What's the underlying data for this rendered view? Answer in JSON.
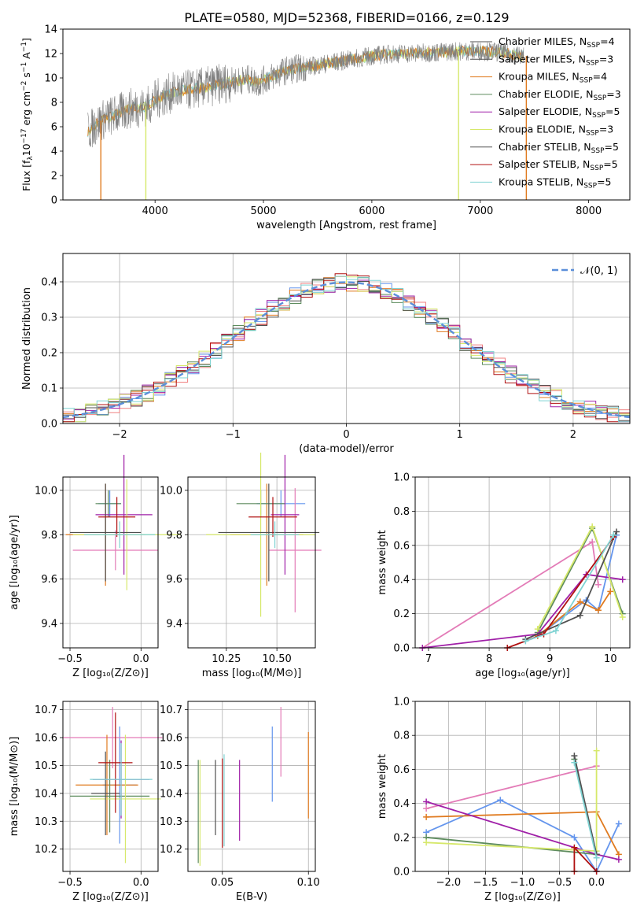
{
  "title": "PLATE=0580, MJD=52368, FIBERID=0166, z=0.129",
  "colors": {
    "Chabrier MILES": "#6495ED",
    "Salpeter MILES": "#F08080",
    "Kroupa MILES": "#E07B20",
    "Chabrier ELODIE": "#5E8C5E",
    "Salpeter ELODIE": "#A020A8",
    "Kroupa ELODIE": "#D6E86A",
    "Chabrier STELIB": "#505050",
    "Salpeter STELIB": "#B01010",
    "Kroupa STELIB": "#7FD3D3",
    "data": "#808080",
    "normal": "#5B8FD9",
    "pink": "#E37BB7",
    "lime": "#B5E655"
  },
  "chart_data": [
    {
      "type": "line",
      "id": "spectrum",
      "title": "PLATE=0580, MJD=52368, FIBERID=0166, z=0.129",
      "xlabel": "wavelength [Angstrom, rest frame]",
      "ylabel_main": "Flux [f",
      "ylabel_sub": "λ",
      "ylabel_rest": "10",
      "ylabel_sup1": "−17",
      "ylabel_mid": " erg cm",
      "ylabel_sup2": "−2",
      "ylabel_mid2": " s",
      "ylabel_sup3": "−1",
      "ylabel_end": " A",
      "ylabel_sup4": "−1",
      "ylabel_close": "]",
      "xlim": [
        3150,
        8380
      ],
      "ylim": [
        0,
        14
      ],
      "xticks": [
        4000,
        5000,
        6000,
        7000,
        8000
      ],
      "yticks": [
        0,
        2,
        4,
        6,
        8,
        10,
        12,
        14
      ],
      "legend_position": "right",
      "legend": [
        {
          "name": "Chabrier MILES",
          "nssp": "4",
          "color": "#505050"
        },
        {
          "name": "Salpeter MILES",
          "nssp": "3",
          "color": "#505050"
        },
        {
          "name": "Kroupa MILES",
          "nssp": "4",
          "color": "#E07B20"
        },
        {
          "name": "Chabrier ELODIE",
          "nssp": "3",
          "color": "#5E8C5E"
        },
        {
          "name": "Salpeter ELODIE",
          "nssp": "5",
          "color": "#A020A8"
        },
        {
          "name": "Kroupa ELODIE",
          "nssp": "3",
          "color": "#D6E86A"
        },
        {
          "name": "Chabrier STELIB",
          "nssp": "5",
          "color": "#505050"
        },
        {
          "name": "Salpeter STELIB",
          "nssp": "5",
          "color": "#B01010"
        },
        {
          "name": "Kroupa STELIB",
          "nssp": "5",
          "color": "#7FD3D3"
        }
      ],
      "nssp_label": "N",
      "nssp_sub": "SSP",
      "continuum": [
        [
          3380,
          5.6
        ],
        [
          3500,
          6.5
        ],
        [
          3600,
          6.9
        ],
        [
          3700,
          7.2
        ],
        [
          3800,
          7.6
        ],
        [
          3900,
          7.6
        ],
        [
          3950,
          7.8
        ],
        [
          4000,
          8.2
        ],
        [
          4100,
          8.6
        ],
        [
          4200,
          8.9
        ],
        [
          4300,
          9.0
        ],
        [
          4500,
          9.3
        ],
        [
          4700,
          9.7
        ],
        [
          4850,
          9.9
        ],
        [
          4950,
          9.6
        ],
        [
          5050,
          10.0
        ],
        [
          5200,
          10.6
        ],
        [
          5400,
          10.9
        ],
        [
          5600,
          11.2
        ],
        [
          5800,
          11.5
        ],
        [
          6000,
          11.8
        ],
        [
          6200,
          12.0
        ],
        [
          6400,
          12.0
        ],
        [
          6600,
          12.1
        ],
        [
          6800,
          12.2
        ],
        [
          7000,
          12.2
        ],
        [
          7200,
          12.1
        ],
        [
          7400,
          11.8
        ]
      ],
      "drops": [
        {
          "x": 3500,
          "color": "#E07B20"
        },
        {
          "x": 3915,
          "color": "#D6E86A"
        },
        {
          "x": 6800,
          "color": "#D6E86A"
        },
        {
          "x": 7425,
          "color": "#E07B20"
        }
      ]
    },
    {
      "type": "histogram",
      "id": "residuals",
      "xlabel": "(data-model)/error",
      "ylabel": "Normed distribution",
      "xlim": [
        -2.5,
        2.5
      ],
      "ylim": [
        0,
        0.48
      ],
      "xticks": [
        -2,
        -1,
        0,
        1,
        2
      ],
      "yticks": [
        0.0,
        0.1,
        0.2,
        0.3,
        0.4
      ],
      "legend": "𝒩(0, 1)",
      "legend_position": "top-right",
      "grid": true
    },
    {
      "type": "errorbar",
      "id": "z-age",
      "xlabel": "Z [log₁₀(Z/Z⊙)]",
      "ylabel": "age  [log₁₀(age/yr)]",
      "xlim": [
        -0.55,
        0.12
      ],
      "ylim": [
        9.29,
        10.06
      ],
      "xticks": [
        -0.5,
        0.0
      ],
      "yticks": [
        9.4,
        9.6,
        9.8,
        10.0
      ],
      "points": [
        {
          "x": -0.22,
          "y": 9.94,
          "xe": 0.08,
          "ye": 0.06,
          "color": "#6495ED"
        },
        {
          "x": -0.18,
          "y": 9.73,
          "xe": 0.3,
          "ye": 0.09,
          "color": "#E37BB7"
        },
        {
          "x": -0.25,
          "y": 9.8,
          "xe": 0.28,
          "ye": 0.23,
          "color": "#E07B20"
        },
        {
          "x": -0.23,
          "y": 9.94,
          "xe": 0.09,
          "ye": 0.06,
          "color": "#5E8C5E"
        },
        {
          "x": -0.12,
          "y": 9.89,
          "xe": 0.2,
          "ye": 0.27,
          "color": "#A020A8"
        },
        {
          "x": -0.1,
          "y": 9.8,
          "xe": 0.38,
          "ye": 0.25,
          "color": "#D6E86A"
        },
        {
          "x": -0.25,
          "y": 9.81,
          "xe": 0.25,
          "ye": 0.22,
          "color": "#505050"
        },
        {
          "x": -0.17,
          "y": 9.88,
          "xe": 0.13,
          "ye": 0.09,
          "color": "#B01010"
        },
        {
          "x": -0.15,
          "y": 9.8,
          "xe": 0.25,
          "ye": 0.06,
          "color": "#7FD3D3"
        }
      ]
    },
    {
      "type": "errorbar",
      "id": "mass-age",
      "xlabel": "mass [log₁₀(M/M⊙)]",
      "ylabel": "",
      "xlim": [
        10.06,
        10.69
      ],
      "ylim": [
        9.29,
        10.06
      ],
      "xticks": [
        10.25,
        10.5
      ],
      "yticks": [
        9.4,
        9.6,
        9.8,
        10.0
      ],
      "points": [
        {
          "x": 10.52,
          "y": 9.94,
          "xe": 0.12,
          "ye": 0.06,
          "color": "#6495ED"
        },
        {
          "x": 10.59,
          "y": 9.73,
          "xe": 0.13,
          "ye": 0.28,
          "color": "#E37BB7"
        },
        {
          "x": 10.45,
          "y": 9.8,
          "xe": 0.18,
          "ye": 0.23,
          "color": "#E07B20"
        },
        {
          "x": 10.42,
          "y": 9.94,
          "xe": 0.12,
          "ye": 0.06,
          "color": "#5E8C5E"
        },
        {
          "x": 10.54,
          "y": 9.89,
          "xe": 0.07,
          "ye": 0.27,
          "color": "#A020A8"
        },
        {
          "x": 10.42,
          "y": 9.8,
          "xe": 0.27,
          "ye": 0.37,
          "color": "#D6E86A"
        },
        {
          "x": 10.46,
          "y": 9.81,
          "xe": 0.25,
          "ye": 0.22,
          "color": "#505050"
        },
        {
          "x": 10.48,
          "y": 9.88,
          "xe": 0.12,
          "ye": 0.09,
          "color": "#B01010"
        },
        {
          "x": 10.49,
          "y": 9.8,
          "xe": 0.12,
          "ye": 0.06,
          "color": "#7FD3D3"
        }
      ]
    },
    {
      "type": "line",
      "id": "age-weight",
      "xlabel": "age  [log₁₀(age/yr)]",
      "ylabel": "mass weight",
      "xlim": [
        6.78,
        10.32
      ],
      "ylim": [
        0,
        1
      ],
      "xticks": [
        7,
        8,
        9,
        10
      ],
      "yticks": [
        0.0,
        0.2,
        0.4,
        0.6,
        0.8,
        1.0
      ],
      "series": [
        {
          "color": "#6495ED",
          "x": [
            8.8,
            9.6,
            9.8,
            10.1
          ],
          "y": [
            0.07,
            0.28,
            0.22,
            0.66
          ]
        },
        {
          "color": "#E37BB7",
          "x": [
            6.9,
            9.7,
            9.8
          ],
          "y": [
            0.0,
            0.62,
            0.37
          ]
        },
        {
          "color": "#E07B20",
          "x": [
            8.8,
            9.5,
            9.8,
            10.0
          ],
          "y": [
            0.07,
            0.27,
            0.22,
            0.33
          ]
        },
        {
          "color": "#5E8C5E",
          "x": [
            8.8,
            9.7,
            10.2
          ],
          "y": [
            0.09,
            0.7,
            0.2
          ]
        },
        {
          "color": "#A020A8",
          "x": [
            6.9,
            8.8,
            9.6,
            10.2
          ],
          "y": [
            0.0,
            0.08,
            0.43,
            0.4
          ]
        },
        {
          "color": "#D6E86A",
          "x": [
            8.8,
            9.7,
            10.2
          ],
          "y": [
            0.11,
            0.71,
            0.18
          ]
        },
        {
          "color": "#505050",
          "x": [
            8.6,
            9.5,
            10.1
          ],
          "y": [
            0.05,
            0.19,
            0.68
          ]
        },
        {
          "color": "#B01010",
          "x": [
            8.3,
            8.9,
            10.05
          ],
          "y": [
            0.0,
            0.08,
            0.65
          ]
        },
        {
          "color": "#7FD3D3",
          "x": [
            8.6,
            9.1,
            10.05
          ],
          "y": [
            0.04,
            0.1,
            0.66
          ]
        }
      ]
    },
    {
      "type": "errorbar",
      "id": "z-mass",
      "xlabel": "Z [log₁₀(Z/Z⊙)]",
      "ylabel": "mass [log₁₀(M/M⊙)]",
      "xlim": [
        -0.55,
        0.12
      ],
      "ylim": [
        10.12,
        10.73
      ],
      "xticks": [
        -0.5,
        0.0
      ],
      "yticks": [
        10.2,
        10.3,
        10.4,
        10.5,
        10.6,
        10.7
      ],
      "points": [
        {
          "x": -0.15,
          "y": 10.43,
          "xe": 0.12,
          "ye": 0.21,
          "color": "#6495ED"
        },
        {
          "x": -0.2,
          "y": 10.6,
          "xe": 0.35,
          "ye": 0.11,
          "color": "#E37BB7"
        },
        {
          "x": -0.24,
          "y": 10.43,
          "xe": 0.22,
          "ye": 0.18,
          "color": "#E07B20"
        },
        {
          "x": -0.22,
          "y": 10.39,
          "xe": 0.28,
          "ye": 0.13,
          "color": "#5E8C5E"
        },
        {
          "x": -0.14,
          "y": 10.45,
          "xe": 0.2,
          "ye": 0.14,
          "color": "#A020A8"
        },
        {
          "x": -0.11,
          "y": 10.38,
          "xe": 0.25,
          "ye": 0.23,
          "color": "#D6E86A"
        },
        {
          "x": -0.25,
          "y": 10.4,
          "xe": 0.1,
          "ye": 0.15,
          "color": "#505050"
        },
        {
          "x": -0.18,
          "y": 10.51,
          "xe": 0.12,
          "ye": 0.18,
          "color": "#B01010"
        },
        {
          "x": -0.14,
          "y": 10.45,
          "xe": 0.22,
          "ye": 0.13,
          "color": "#7FD3D3"
        }
      ]
    },
    {
      "type": "errorbar",
      "id": "ebv-mass",
      "xlabel": "E(B-V)",
      "ylabel": "",
      "xlim": [
        0.03,
        0.104
      ],
      "ylim": [
        10.12,
        10.73
      ],
      "xticks": [
        0.05,
        0.1
      ],
      "yticks": [
        10.2,
        10.3,
        10.4,
        10.5,
        10.6,
        10.7
      ],
      "points": [
        {
          "x": 0.079,
          "y": 10.505,
          "xe": 0.0,
          "ye": 0.135,
          "color": "#6495ED"
        },
        {
          "x": 0.084,
          "y": 10.585,
          "xe": 0.0,
          "ye": 0.125,
          "color": "#E37BB7"
        },
        {
          "x": 0.1,
          "y": 10.465,
          "xe": 0.0,
          "ye": 0.155,
          "color": "#E07B20"
        },
        {
          "x": 0.036,
          "y": 10.335,
          "xe": 0.0,
          "ye": 0.185,
          "color": "#5E8C5E"
        },
        {
          "x": 0.06,
          "y": 10.375,
          "xe": 0.0,
          "ye": 0.145,
          "color": "#A020A8"
        },
        {
          "x": 0.037,
          "y": 10.33,
          "xe": 0.0,
          "ye": 0.19,
          "color": "#D6E86A"
        },
        {
          "x": 0.046,
          "y": 10.385,
          "xe": 0.0,
          "ye": 0.135,
          "color": "#505050"
        },
        {
          "x": 0.05,
          "y": 10.365,
          "xe": 0.0,
          "ye": 0.16,
          "color": "#B01010"
        },
        {
          "x": 0.051,
          "y": 10.375,
          "xe": 0.0,
          "ye": 0.165,
          "color": "#7FD3D3"
        }
      ]
    },
    {
      "type": "line",
      "id": "z-weight",
      "xlabel": "Z [log₁₀(Z/Z⊙)]",
      "ylabel": "mass weight",
      "xlim": [
        -2.45,
        0.45
      ],
      "ylim": [
        0,
        1
      ],
      "xticks": [
        -2.0,
        -1.5,
        -1.0,
        -0.5,
        0.0
      ],
      "yticks": [
        0.0,
        0.2,
        0.4,
        0.6,
        0.8,
        1.0
      ],
      "series": [
        {
          "color": "#6495ED",
          "x": [
            -2.3,
            -1.3,
            -0.3,
            0.0,
            0.3
          ],
          "y": [
            0.23,
            0.42,
            0.2,
            0.0,
            0.28
          ]
        },
        {
          "color": "#E37BB7",
          "x": [
            -2.3,
            0.0
          ],
          "y": [
            0.37,
            0.62
          ]
        },
        {
          "color": "#E07B20",
          "x": [
            -2.3,
            0.0,
            0.3
          ],
          "y": [
            0.32,
            0.35,
            0.1
          ]
        },
        {
          "color": "#5E8C5E",
          "x": [
            -2.3,
            0.0,
            -0.3
          ],
          "y": [
            0.2,
            0.1,
            0.66
          ]
        },
        {
          "color": "#A020A8",
          "x": [
            -2.3,
            0.0,
            0.3
          ],
          "y": [
            0.41,
            0.1,
            0.07
          ]
        },
        {
          "color": "#D6E86A",
          "x": [
            -2.3,
            0.0,
            0.0
          ],
          "y": [
            0.17,
            0.12,
            0.71
          ]
        },
        {
          "color": "#505050",
          "x": [
            -0.3,
            0.0
          ],
          "y": [
            0.68,
            0.1
          ]
        },
        {
          "color": "#B01010",
          "x": [
            -0.3,
            -0.3,
            0.0
          ],
          "y": [
            0.0,
            0.14,
            0.0
          ]
        },
        {
          "color": "#7FD3D3",
          "x": [
            -0.3,
            0.0
          ],
          "y": [
            0.64,
            0.08
          ]
        }
      ]
    }
  ]
}
